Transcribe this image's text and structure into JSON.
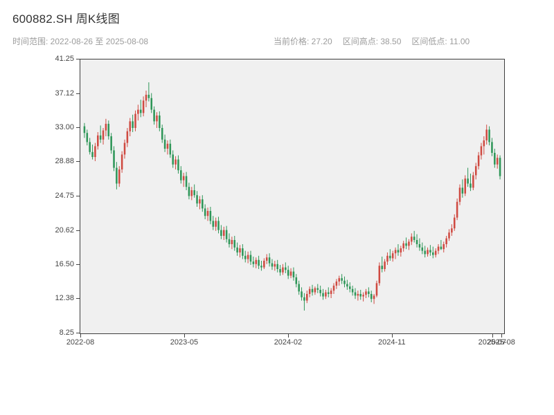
{
  "header": {
    "title": "600882.SH 周K线图",
    "time_range_label": "时间范围: 2022-08-26 至 2025-08-08",
    "current_price_label": "当前价格: 27.20",
    "range_high_label": "区间高点: 38.50",
    "range_low_label": "区间低点: 11.00"
  },
  "chart_data": {
    "type": "candlestick",
    "title": "600882.SH 周K线图",
    "symbol": "600882.SH",
    "interval": "weekly",
    "x_start": "2022-08-26",
    "x_end": "2025-08-08",
    "current_price": 27.2,
    "range_high": 38.5,
    "range_low": 11.0,
    "xlabel": "",
    "ylabel": "",
    "grid": false,
    "plot_background": "#f0f0f0",
    "up_color": "#cf4a41",
    "down_color": "#2e9658",
    "y_range": [
      8.25,
      41.25
    ],
    "y_ticks": [
      "41.25",
      "37.12",
      "33.00",
      "28.88",
      "24.75",
      "20.62",
      "16.50",
      "12.38",
      "8.25"
    ],
    "x_ticks": [
      {
        "label": "2022-08",
        "pos": 0.0
      },
      {
        "label": "2023-05",
        "pos": 0.245
      },
      {
        "label": "2024-02",
        "pos": 0.49
      },
      {
        "label": "2024-11",
        "pos": 0.735
      },
      {
        "label": "2025-07",
        "pos": 0.972
      },
      {
        "label": "2025-08",
        "pos": 0.993
      }
    ],
    "candles": [
      [
        33.2,
        33.6,
        31.8,
        32.4
      ],
      [
        32.4,
        32.8,
        30.9,
        31.3
      ],
      [
        31.3,
        31.8,
        29.8,
        30.1
      ],
      [
        30.1,
        31.0,
        29.2,
        29.5
      ],
      [
        29.5,
        31.2,
        29.0,
        30.8
      ],
      [
        30.8,
        32.5,
        30.4,
        32.1
      ],
      [
        32.1,
        33.3,
        31.2,
        31.6
      ],
      [
        31.6,
        33.0,
        31.0,
        32.7
      ],
      [
        32.7,
        34.1,
        32.0,
        33.5
      ],
      [
        33.5,
        33.9,
        31.6,
        32.0
      ],
      [
        32.0,
        32.4,
        29.9,
        30.3
      ],
      [
        30.3,
        30.8,
        27.8,
        28.2
      ],
      [
        28.2,
        28.9,
        25.6,
        26.3
      ],
      [
        26.3,
        28.4,
        25.9,
        28.0
      ],
      [
        28.0,
        30.2,
        27.6,
        29.8
      ],
      [
        29.8,
        31.6,
        29.3,
        31.2
      ],
      [
        31.2,
        33.0,
        30.7,
        32.6
      ],
      [
        32.6,
        34.2,
        32.0,
        33.8
      ],
      [
        33.8,
        34.6,
        32.5,
        33.0
      ],
      [
        33.0,
        35.1,
        32.6,
        34.7
      ],
      [
        34.7,
        35.8,
        33.9,
        35.2
      ],
      [
        35.2,
        36.4,
        34.3,
        34.8
      ],
      [
        34.8,
        36.8,
        34.4,
        36.3
      ],
      [
        36.3,
        37.5,
        35.5,
        37.0
      ],
      [
        37.0,
        38.5,
        36.2,
        36.6
      ],
      [
        36.6,
        37.2,
        34.8,
        35.2
      ],
      [
        35.2,
        35.6,
        33.4,
        33.8
      ],
      [
        33.8,
        34.9,
        33.0,
        34.5
      ],
      [
        34.5,
        35.0,
        32.6,
        33.0
      ],
      [
        33.0,
        33.4,
        31.2,
        31.6
      ],
      [
        31.6,
        32.2,
        30.1,
        30.5
      ],
      [
        30.5,
        31.5,
        29.8,
        31.1
      ],
      [
        31.1,
        31.6,
        29.4,
        29.8
      ],
      [
        29.8,
        30.3,
        28.2,
        28.6
      ],
      [
        28.6,
        29.6,
        28.0,
        29.2
      ],
      [
        29.2,
        29.7,
        27.5,
        27.9
      ],
      [
        27.9,
        28.4,
        26.3,
        26.7
      ],
      [
        26.7,
        27.6,
        25.9,
        27.2
      ],
      [
        27.2,
        27.7,
        25.5,
        25.9
      ],
      [
        25.9,
        26.4,
        24.4,
        24.8
      ],
      [
        24.8,
        25.9,
        24.3,
        25.5
      ],
      [
        25.5,
        26.2,
        24.6,
        24.9
      ],
      [
        24.9,
        25.4,
        23.5,
        23.9
      ],
      [
        23.9,
        24.8,
        23.2,
        24.4
      ],
      [
        24.4,
        24.9,
        22.9,
        23.3
      ],
      [
        23.3,
        23.8,
        22.0,
        22.4
      ],
      [
        22.4,
        23.4,
        21.8,
        23.0
      ],
      [
        23.0,
        23.5,
        21.4,
        21.8
      ],
      [
        21.8,
        22.4,
        20.7,
        21.1
      ],
      [
        21.1,
        22.2,
        20.6,
        21.8
      ],
      [
        21.8,
        22.3,
        20.3,
        20.7
      ],
      [
        20.7,
        21.3,
        19.6,
        20.0
      ],
      [
        20.0,
        21.1,
        19.5,
        20.7
      ],
      [
        20.7,
        21.2,
        19.2,
        19.6
      ],
      [
        19.6,
        20.3,
        18.6,
        19.0
      ],
      [
        19.0,
        19.9,
        18.4,
        19.5
      ],
      [
        19.5,
        20.0,
        18.2,
        18.6
      ],
      [
        18.6,
        19.2,
        17.6,
        18.0
      ],
      [
        18.0,
        18.9,
        17.4,
        18.5
      ],
      [
        18.5,
        19.0,
        17.2,
        17.6
      ],
      [
        17.6,
        18.2,
        16.8,
        17.2
      ],
      [
        17.2,
        18.1,
        16.7,
        17.7
      ],
      [
        17.7,
        18.2,
        16.5,
        16.9
      ],
      [
        16.9,
        17.5,
        16.2,
        16.6
      ],
      [
        16.6,
        17.4,
        16.1,
        17.1
      ],
      [
        17.1,
        17.6,
        16.0,
        16.4
      ],
      [
        16.4,
        17.0,
        15.8,
        16.2
      ],
      [
        16.2,
        17.3,
        16.0,
        17.0
      ],
      [
        17.0,
        17.8,
        16.6,
        17.4
      ],
      [
        17.4,
        17.9,
        16.3,
        16.7
      ],
      [
        16.7,
        17.2,
        15.9,
        16.3
      ],
      [
        16.3,
        17.0,
        15.8,
        16.6
      ],
      [
        16.6,
        17.1,
        15.6,
        16.0
      ],
      [
        16.0,
        16.5,
        15.2,
        15.6
      ],
      [
        15.6,
        16.6,
        15.3,
        16.2
      ],
      [
        16.2,
        16.8,
        15.5,
        15.9
      ],
      [
        15.9,
        16.4,
        14.8,
        15.2
      ],
      [
        15.2,
        16.1,
        14.9,
        15.7
      ],
      [
        15.7,
        16.2,
        14.6,
        15.0
      ],
      [
        15.0,
        15.4,
        13.8,
        14.2
      ],
      [
        14.2,
        14.6,
        12.9,
        13.3
      ],
      [
        13.3,
        13.8,
        12.2,
        12.6
      ],
      [
        12.6,
        13.1,
        11.0,
        12.2
      ],
      [
        12.2,
        13.4,
        11.9,
        13.0
      ],
      [
        13.0,
        13.9,
        12.6,
        13.6
      ],
      [
        13.6,
        14.1,
        12.8,
        13.2
      ],
      [
        13.2,
        13.9,
        12.9,
        13.7
      ],
      [
        13.7,
        14.2,
        13.1,
        13.5
      ],
      [
        13.5,
        14.0,
        12.7,
        13.1
      ],
      [
        13.1,
        13.6,
        12.3,
        12.7
      ],
      [
        12.7,
        13.5,
        12.4,
        13.2
      ],
      [
        13.2,
        13.8,
        12.6,
        13.0
      ],
      [
        13.0,
        13.7,
        12.5,
        13.4
      ],
      [
        13.4,
        14.3,
        13.0,
        14.0
      ],
      [
        14.0,
        14.8,
        13.6,
        14.5
      ],
      [
        14.5,
        15.2,
        14.0,
        14.9
      ],
      [
        14.9,
        15.4,
        14.2,
        14.6
      ],
      [
        14.6,
        15.1,
        13.8,
        14.2
      ],
      [
        14.2,
        14.7,
        13.5,
        13.9
      ],
      [
        13.9,
        14.4,
        13.2,
        13.6
      ],
      [
        13.6,
        14.0,
        12.8,
        13.2
      ],
      [
        13.2,
        13.7,
        12.4,
        12.8
      ],
      [
        12.8,
        13.4,
        12.2,
        13.0
      ],
      [
        13.0,
        13.5,
        12.3,
        12.7
      ],
      [
        12.7,
        13.2,
        12.1,
        12.9
      ],
      [
        12.9,
        13.6,
        12.5,
        13.3
      ],
      [
        13.3,
        13.8,
        12.6,
        13.0
      ],
      [
        13.0,
        13.4,
        12.0,
        12.4
      ],
      [
        12.4,
        13.0,
        11.8,
        12.8
      ],
      [
        12.8,
        14.6,
        12.6,
        14.3
      ],
      [
        14.3,
        16.8,
        14.0,
        16.4
      ],
      [
        16.4,
        17.5,
        15.6,
        16.0
      ],
      [
        16.0,
        17.2,
        15.7,
        16.9
      ],
      [
        16.9,
        18.0,
        16.5,
        17.6
      ],
      [
        17.6,
        18.4,
        17.0,
        17.3
      ],
      [
        17.3,
        18.2,
        16.9,
        17.9
      ],
      [
        17.9,
        18.6,
        17.2,
        18.3
      ],
      [
        18.3,
        19.0,
        17.6,
        18.0
      ],
      [
        18.0,
        18.8,
        17.5,
        18.5
      ],
      [
        18.5,
        19.4,
        18.1,
        19.1
      ],
      [
        19.1,
        19.8,
        18.4,
        18.8
      ],
      [
        18.8,
        19.6,
        18.3,
        19.3
      ],
      [
        19.3,
        20.3,
        18.9,
        19.9
      ],
      [
        19.9,
        20.6,
        19.2,
        19.5
      ],
      [
        19.5,
        20.2,
        18.6,
        19.0
      ],
      [
        19.0,
        19.7,
        18.2,
        18.6
      ],
      [
        18.6,
        19.2,
        17.8,
        18.2
      ],
      [
        18.2,
        18.8,
        17.4,
        17.8
      ],
      [
        17.8,
        18.6,
        17.5,
        18.3
      ],
      [
        18.3,
        18.9,
        17.6,
        18.0
      ],
      [
        18.0,
        18.7,
        17.3,
        17.7
      ],
      [
        17.7,
        18.5,
        17.4,
        18.2
      ],
      [
        18.2,
        19.0,
        17.8,
        18.7
      ],
      [
        18.7,
        19.5,
        18.3,
        18.4
      ],
      [
        18.4,
        19.3,
        18.0,
        19.0
      ],
      [
        19.0,
        20.0,
        18.6,
        19.7
      ],
      [
        19.7,
        20.8,
        19.4,
        20.4
      ],
      [
        20.4,
        21.4,
        20.0,
        20.9
      ],
      [
        20.9,
        22.6,
        20.6,
        22.2
      ],
      [
        22.2,
        24.5,
        21.9,
        24.1
      ],
      [
        24.1,
        26.2,
        23.7,
        25.8
      ],
      [
        25.8,
        26.8,
        24.6,
        25.1
      ],
      [
        25.1,
        27.3,
        24.8,
        26.9
      ],
      [
        26.9,
        28.2,
        25.9,
        26.3
      ],
      [
        26.3,
        27.5,
        25.4,
        25.8
      ],
      [
        25.8,
        27.7,
        25.5,
        27.3
      ],
      [
        27.3,
        28.8,
        26.8,
        28.4
      ],
      [
        28.4,
        30.1,
        28.0,
        29.7
      ],
      [
        29.7,
        31.2,
        29.2,
        30.8
      ],
      [
        30.8,
        32.0,
        29.8,
        31.5
      ],
      [
        31.5,
        33.4,
        31.0,
        32.8
      ],
      [
        32.8,
        33.2,
        30.9,
        31.3
      ],
      [
        31.3,
        31.8,
        29.6,
        30.0
      ],
      [
        30.0,
        30.5,
        28.2,
        28.6
      ],
      [
        28.6,
        29.8,
        28.1,
        29.4
      ],
      [
        29.4,
        29.7,
        26.8,
        27.2
      ]
    ]
  }
}
